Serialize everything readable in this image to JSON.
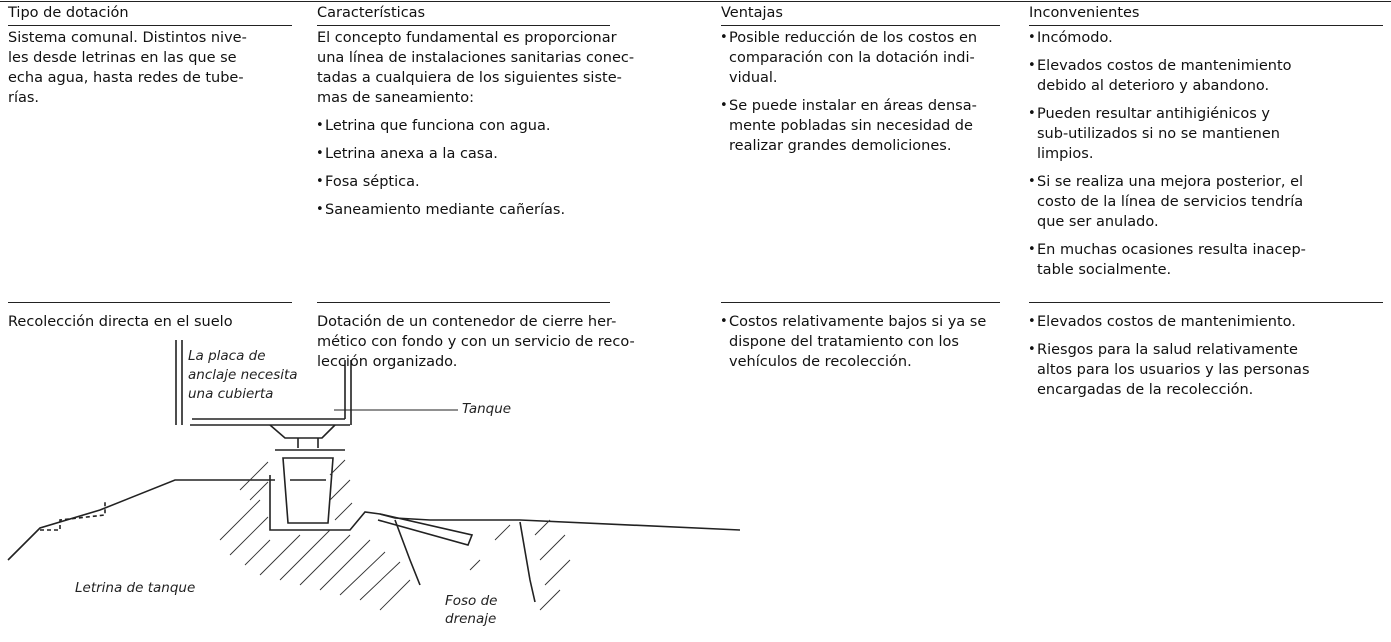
{
  "header": {
    "columns": [
      "Tipo de dotación",
      "Características",
      "Ventajas",
      "Inconvenientes"
    ]
  },
  "table": {
    "rows": [
      {
        "cells": [
          {
            "lines": [
              "Sistema comunal. Distintos nive-",
              "les desde letrinas en las que se",
              "echa agua, hasta redes de tube-",
              "rías."
            ]
          },
          {
            "lines": [
              "El concepto fundamental es proporcionar",
              "una línea de instalaciones sanitarias conec-",
              "tadas a cualquiera de los siguientes siste-",
              "mas de saneamiento:"
            ],
            "bullets": [
              [
                "Letrina que funciona con agua."
              ],
              [
                "Letrina anexa a la casa."
              ],
              [
                "Fosa séptica."
              ],
              [
                "Saneamiento mediante cañerías."
              ]
            ]
          },
          {
            "bullets": [
              [
                "Posible reducción de los costos en",
                "comparación con la dotación indi-",
                "vidual."
              ],
              [
                "Se puede instalar en áreas densa-",
                "mente pobladas sin necesidad de",
                "realizar grandes demoliciones."
              ]
            ]
          },
          {
            "bullets": [
              [
                "Incómodo."
              ],
              [
                "Elevados costos de mantenimiento",
                "debido al deterioro y abandono."
              ],
              [
                "Pueden resultar antihigiénicos y",
                "sub-utilizados si no se mantienen",
                "limpios."
              ],
              [
                "Si se realiza una mejora posterior, el",
                "costo de la línea de servicios tendría",
                "que ser anulado."
              ],
              [
                "En muchas ocasiones resulta inacep-",
                "table socialmente."
              ]
            ]
          }
        ]
      },
      {
        "cells": [
          {
            "lines": [
              "Recolección directa en el suelo"
            ]
          },
          {
            "lines": [
              "Dotación de un contenedor de cierre her-",
              "mético con fondo y con un servicio de reco-",
              "lección organizado."
            ]
          },
          {
            "bullets": [
              [
                "Costos relativamente bajos si ya se",
                "dispone del tratamiento con los",
                "vehículos de recolección."
              ]
            ]
          },
          {
            "bullets": [
              [
                "Elevados costos de mantenimiento."
              ],
              [
                "Riesgos para la salud relativamente",
                "altos para los usuarios y las personas",
                "encargadas de la recolección."
              ]
            ]
          }
        ]
      }
    ]
  },
  "figure": {
    "anchor_label": [
      "La placa de",
      "anclaje necesita",
      "una cubierta"
    ],
    "tank_label": "Tanque",
    "latrine_label": "Letrina de tanque",
    "drain_label": [
      "Foso de",
      "drenaje"
    ]
  }
}
